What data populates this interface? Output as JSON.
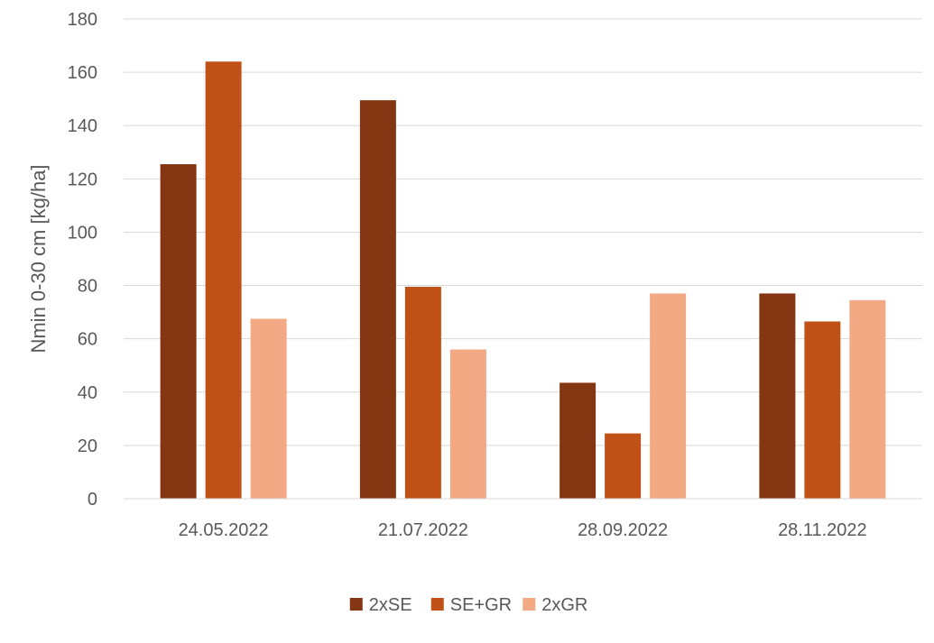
{
  "chart_data": {
    "type": "bar",
    "categories": [
      "24.05.2022",
      "21.07.2022",
      "28.09.2022",
      "28.11.2022"
    ],
    "series": [
      {
        "name": "2xSE",
        "color": "#843511",
        "values": [
          125.5,
          149.5,
          43.5,
          77
        ]
      },
      {
        "name": "SE+GR",
        "color": "#c05117",
        "values": [
          164,
          79.5,
          24.5,
          66.5
        ]
      },
      {
        "name": "2xGR",
        "color": "#f2a984",
        "values": [
          67.5,
          56,
          77,
          74.5
        ]
      }
    ],
    "title": "",
    "xlabel": "",
    "ylabel": "Nmin 0-30 cm [kg/ha]",
    "ylim": [
      0,
      180
    ],
    "yticks": [
      0,
      20,
      40,
      60,
      80,
      100,
      120,
      140,
      160,
      180
    ],
    "grid": true,
    "legend_position": "bottom"
  }
}
